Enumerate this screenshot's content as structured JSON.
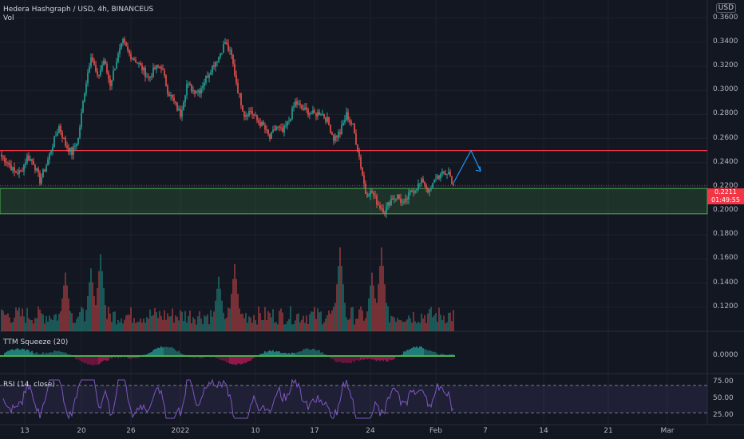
{
  "header": {
    "title": "Hedera Hashgraph / USD, 4h, BINANCEUS",
    "vol_label": "Vol",
    "currency_button": "USD"
  },
  "price_tag": {
    "value": "0.2211",
    "countdown": "01:49:55"
  },
  "indicators": {
    "ttm_label": "TTM Squeeze (20)",
    "rsi_label": "RSI (14, close)"
  },
  "colors": {
    "background": "#131722",
    "up": "#26a69a",
    "down": "#ef5350",
    "resistance": "#f23645",
    "support_zone": "#4caf50",
    "arrow": "#2196f3",
    "rsi": "#7e57c2"
  },
  "chart_data": [
    {
      "type": "candlestick",
      "pane": "price",
      "x_labels": [
        "13",
        "20",
        "26",
        "2022",
        "10",
        "17",
        "24",
        "Feb",
        "7",
        "14",
        "21",
        "Mar"
      ],
      "y_ticks": [
        "0.1200",
        "0.1400",
        "0.1600",
        "0.1800",
        "0.2000",
        "0.2200",
        "0.2400",
        "0.2600",
        "0.2800",
        "0.3000",
        "0.3200",
        "0.3400",
        "0.3600"
      ],
      "ylim": [
        0.1,
        0.375
      ],
      "anchors": [
        [
          0,
          0.245
        ],
        [
          4,
          0.24
        ],
        [
          8,
          0.232
        ],
        [
          12,
          0.232
        ],
        [
          16,
          0.245
        ],
        [
          20,
          0.24
        ],
        [
          24,
          0.225
        ],
        [
          28,
          0.238
        ],
        [
          32,
          0.255
        ],
        [
          36,
          0.27
        ],
        [
          40,
          0.255
        ],
        [
          44,
          0.248
        ],
        [
          48,
          0.26
        ],
        [
          52,
          0.3
        ],
        [
          56,
          0.33
        ],
        [
          60,
          0.31
        ],
        [
          64,
          0.325
        ],
        [
          68,
          0.305
        ],
        [
          72,
          0.325
        ],
        [
          76,
          0.34
        ],
        [
          80,
          0.33
        ],
        [
          84,
          0.325
        ],
        [
          88,
          0.318
        ],
        [
          92,
          0.31
        ],
        [
          96,
          0.318
        ],
        [
          100,
          0.32
        ],
        [
          104,
          0.3
        ],
        [
          108,
          0.29
        ],
        [
          112,
          0.28
        ],
        [
          116,
          0.305
        ],
        [
          120,
          0.3
        ],
        [
          124,
          0.3
        ],
        [
          128,
          0.31
        ],
        [
          132,
          0.32
        ],
        [
          136,
          0.328
        ],
        [
          140,
          0.34
        ],
        [
          144,
          0.328
        ],
        [
          148,
          0.3
        ],
        [
          152,
          0.28
        ],
        [
          156,
          0.283
        ],
        [
          160,
          0.275
        ],
        [
          164,
          0.27
        ],
        [
          168,
          0.26
        ],
        [
          172,
          0.27
        ],
        [
          176,
          0.265
        ],
        [
          180,
          0.275
        ],
        [
          184,
          0.29
        ],
        [
          188,
          0.285
        ],
        [
          192,
          0.282
        ],
        [
          196,
          0.28
        ],
        [
          200,
          0.282
        ],
        [
          204,
          0.275
        ],
        [
          208,
          0.26
        ],
        [
          212,
          0.265
        ],
        [
          216,
          0.28
        ],
        [
          220,
          0.27
        ],
        [
          224,
          0.245
        ],
        [
          228,
          0.215
        ],
        [
          232,
          0.215
        ],
        [
          236,
          0.205
        ],
        [
          240,
          0.2
        ],
        [
          244,
          0.21
        ],
        [
          248,
          0.212
        ],
        [
          252,
          0.205
        ],
        [
          256,
          0.215
        ],
        [
          260,
          0.22
        ],
        [
          264,
          0.225
        ],
        [
          268,
          0.215
        ],
        [
          272,
          0.228
        ],
        [
          276,
          0.23
        ],
        [
          280,
          0.232
        ],
        [
          283,
          0.221
        ]
      ],
      "last_price": 0.2211,
      "resistance_level": 0.25,
      "support_zone": [
        0.1975,
        0.2185
      ],
      "projection_arrow": [
        [
          283,
          0.223
        ],
        [
          294,
          0.25
        ],
        [
          300,
          0.233
        ]
      ]
    },
    {
      "type": "bar",
      "pane": "volume",
      "label": "Vol",
      "spike_values": [
        0.7,
        0.75,
        0.92,
        0.65,
        0.8,
        1.0,
        0.7,
        1.0
      ],
      "spike_positions": [
        40,
        56,
        62,
        136,
        146,
        212,
        232,
        238
      ]
    },
    {
      "type": "histogram",
      "pane": "ttm_squeeze",
      "label": "TTM Squeeze (20)",
      "y_ticks": [
        "0.0000"
      ]
    },
    {
      "type": "line",
      "pane": "rsi",
      "label": "RSI (14, close)",
      "y_ticks": [
        "75.00",
        "50.00",
        "25.00"
      ],
      "bands": [
        30,
        70
      ]
    }
  ]
}
